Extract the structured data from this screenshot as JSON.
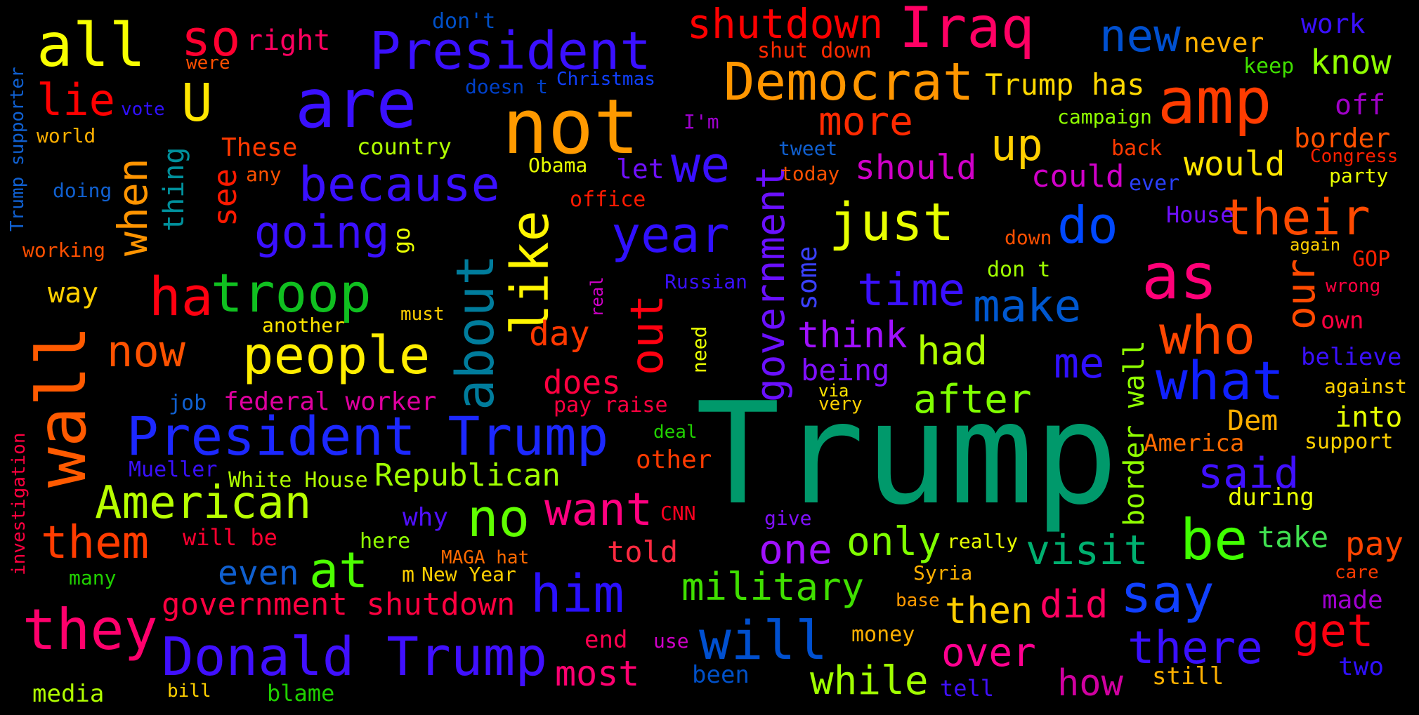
{
  "background": "#000000",
  "words": [
    {
      "text": "Trump",
      "color": "#00996b"
    },
    {
      "text": "not",
      "color": "#ff9a00"
    },
    {
      "text": "are",
      "color": "#3a10ff"
    },
    {
      "text": "all",
      "color": "#f7ff00"
    },
    {
      "text": "wall",
      "color": "#ff5a00"
    },
    {
      "text": "amp",
      "color": "#ff3c00"
    },
    {
      "text": "Iraq",
      "color": "#ff0064"
    },
    {
      "text": "President",
      "color": "#3a10ff"
    },
    {
      "text": "President Trump",
      "color": "#1c28ff"
    },
    {
      "text": "Donald Trump",
      "color": "#4010ff"
    },
    {
      "text": "Democrat",
      "color": "#ff9600"
    },
    {
      "text": "shutdown",
      "color": "#ff0000"
    },
    {
      "text": "as",
      "color": "#ff0078"
    },
    {
      "text": "who",
      "color": "#ff4600"
    },
    {
      "text": "what",
      "color": "#1020ff"
    },
    {
      "text": "they",
      "color": "#ff006c"
    },
    {
      "text": "troop",
      "color": "#10c020"
    },
    {
      "text": "ha",
      "color": "#ff0010"
    },
    {
      "text": "people",
      "color": "#ffee00"
    },
    {
      "text": "about",
      "color": "#007c9c"
    },
    {
      "text": "like",
      "color": "#fff600"
    },
    {
      "text": "year",
      "color": "#3010ff"
    },
    {
      "text": "we",
      "color": "#3a10ff"
    },
    {
      "text": "just",
      "color": "#e8ff00"
    },
    {
      "text": "do",
      "color": "#0048ff"
    },
    {
      "text": "their",
      "color": "#ff4a00"
    },
    {
      "text": "new",
      "color": "#0050d0"
    },
    {
      "text": "U",
      "color": "#ffe600"
    },
    {
      "text": "so",
      "color": "#ff0030"
    },
    {
      "text": "lie",
      "color": "#ff0000"
    },
    {
      "text": "when",
      "color": "#ff9400"
    },
    {
      "text": "because",
      "color": "#3a10ff"
    },
    {
      "text": "going",
      "color": "#3a10ff"
    },
    {
      "text": "now",
      "color": "#ff5200"
    },
    {
      "text": "American",
      "color": "#b8ff00"
    },
    {
      "text": "them",
      "color": "#ff3c00"
    },
    {
      "text": "at",
      "color": "#4cff00"
    },
    {
      "text": "no",
      "color": "#60ff00"
    },
    {
      "text": "want",
      "color": "#ff0080"
    },
    {
      "text": "him",
      "color": "#2a10ff"
    },
    {
      "text": "will",
      "color": "#0050d0"
    },
    {
      "text": "be",
      "color": "#40ff00"
    },
    {
      "text": "say",
      "color": "#1040ff"
    },
    {
      "text": "there",
      "color": "#3a10ff"
    },
    {
      "text": "get",
      "color": "#ff0010"
    },
    {
      "text": "visit",
      "color": "#00b070"
    },
    {
      "text": "one",
      "color": "#a010ff"
    },
    {
      "text": "only",
      "color": "#80ff00"
    },
    {
      "text": "military",
      "color": "#40e000"
    },
    {
      "text": "government",
      "color": "#6a10ff"
    },
    {
      "text": "government shutdown",
      "color": "#ff0040"
    },
    {
      "text": "out",
      "color": "#ff0010"
    },
    {
      "text": "make",
      "color": "#0058d0"
    },
    {
      "text": "time",
      "color": "#3a10ff"
    },
    {
      "text": "our",
      "color": "#ff4a00"
    },
    {
      "text": "more",
      "color": "#ff2a00"
    },
    {
      "text": "up",
      "color": "#ffd000"
    },
    {
      "text": "Republican",
      "color": "#a0ff00"
    },
    {
      "text": "over",
      "color": "#ff0090"
    },
    {
      "text": "while",
      "color": "#a0ff00"
    },
    {
      "text": "after",
      "color": "#80ff00"
    },
    {
      "text": "had",
      "color": "#b0ff00"
    },
    {
      "text": "me",
      "color": "#3010ff"
    },
    {
      "text": "said",
      "color": "#4010ff"
    },
    {
      "text": "think",
      "color": "#a010ff"
    },
    {
      "text": "Trump has",
      "color": "#ffd800"
    },
    {
      "text": "should",
      "color": "#d000c8"
    },
    {
      "text": "could",
      "color": "#d000c8"
    },
    {
      "text": "would",
      "color": "#ffe600"
    },
    {
      "text": "know",
      "color": "#90ff00"
    },
    {
      "text": "border wall",
      "color": "#90ff00"
    },
    {
      "text": "how",
      "color": "#d000a0"
    },
    {
      "text": "most",
      "color": "#ff0070"
    },
    {
      "text": "did",
      "color": "#ff0060"
    },
    {
      "text": "then",
      "color": "#ffd000"
    },
    {
      "text": "told",
      "color": "#ff2a40"
    },
    {
      "text": "pay",
      "color": "#ff4400"
    },
    {
      "text": "take",
      "color": "#40e050"
    },
    {
      "text": "day",
      "color": "#ff3800"
    },
    {
      "text": "does",
      "color": "#ff0040"
    },
    {
      "text": "being",
      "color": "#8010ff"
    },
    {
      "text": "right",
      "color": "#ff0060"
    },
    {
      "text": "don't",
      "color": "#0050c8"
    },
    {
      "text": "shut down",
      "color": "#ff2a00"
    },
    {
      "text": "never",
      "color": "#ffb000"
    },
    {
      "text": "work",
      "color": "#3a10ff"
    },
    {
      "text": "keep",
      "color": "#40e000"
    },
    {
      "text": "off",
      "color": "#a000c8"
    },
    {
      "text": "border",
      "color": "#ff5000"
    },
    {
      "text": "Congress",
      "color": "#ff2000"
    },
    {
      "text": "party",
      "color": "#e8ff00"
    },
    {
      "text": "campaign",
      "color": "#90ff00"
    },
    {
      "text": "back",
      "color": "#ff3a00"
    },
    {
      "text": "ever",
      "color": "#2a40ff"
    },
    {
      "text": "House",
      "color": "#7010ff"
    },
    {
      "text": "again",
      "color": "#ffd000"
    },
    {
      "text": "GOP",
      "color": "#ff2000"
    },
    {
      "text": "wrong",
      "color": "#ff0040"
    },
    {
      "text": "own",
      "color": "#ff0040"
    },
    {
      "text": "believe",
      "color": "#3a10ff"
    },
    {
      "text": "against",
      "color": "#ffd000"
    },
    {
      "text": "into",
      "color": "#e8ff00"
    },
    {
      "text": "Dem",
      "color": "#ffb000"
    },
    {
      "text": "support",
      "color": "#ffd000"
    },
    {
      "text": "America",
      "color": "#ff6a00"
    },
    {
      "text": "during",
      "color": "#e8ff00"
    },
    {
      "text": "care",
      "color": "#ff3a00"
    },
    {
      "text": "made",
      "color": "#a000d0"
    },
    {
      "text": "two",
      "color": "#3010ff"
    },
    {
      "text": "still",
      "color": "#ffb000"
    },
    {
      "text": "really",
      "color": "#e8ff00"
    },
    {
      "text": "Syria",
      "color": "#ffb000"
    },
    {
      "text": "base",
      "color": "#ff9a00"
    },
    {
      "text": "money",
      "color": "#ffb000"
    },
    {
      "text": "tell",
      "color": "#4010ff"
    },
    {
      "text": "been",
      "color": "#0050c8"
    },
    {
      "text": "use",
      "color": "#d000c8"
    },
    {
      "text": "end",
      "color": "#ff0050"
    },
    {
      "text": "give",
      "color": "#8010ff"
    },
    {
      "text": "CNN",
      "color": "#ff0020"
    },
    {
      "text": "MAGA hat",
      "color": "#ff6a00"
    },
    {
      "text": "New Year",
      "color": "#ffd000"
    },
    {
      "text": "m",
      "color": "#ffd000"
    },
    {
      "text": "here",
      "color": "#90ff00"
    },
    {
      "text": "why",
      "color": "#5010ff"
    },
    {
      "text": "will be",
      "color": "#ff0030"
    },
    {
      "text": "other",
      "color": "#ff3a00"
    },
    {
      "text": "deal",
      "color": "#20d000"
    },
    {
      "text": "very",
      "color": "#ffd000"
    },
    {
      "text": "via",
      "color": "#ffe600"
    },
    {
      "text": "pay raise",
      "color": "#ff0040"
    },
    {
      "text": "federal worker",
      "color": "#e000a0"
    },
    {
      "text": "job",
      "color": "#1060d0"
    },
    {
      "text": "White House",
      "color": "#b0ff00"
    },
    {
      "text": "Mueller",
      "color": "#3a10ff"
    },
    {
      "text": "even",
      "color": "#1060d0"
    },
    {
      "text": "many",
      "color": "#20d000"
    },
    {
      "text": "media",
      "color": "#b0ff00"
    },
    {
      "text": "bill",
      "color": "#ffd000"
    },
    {
      "text": "blame",
      "color": "#20d000"
    },
    {
      "text": "investigation",
      "color": "#ff0040"
    },
    {
      "text": "working",
      "color": "#ff5000"
    },
    {
      "text": "doing",
      "color": "#1060d0"
    },
    {
      "text": "world",
      "color": "#ffb000"
    },
    {
      "text": "vote",
      "color": "#3010ff"
    },
    {
      "text": "were",
      "color": "#ff5000"
    },
    {
      "text": "Trump supporter",
      "color": "#1060d0"
    },
    {
      "text": "way",
      "color": "#ffd000"
    },
    {
      "text": "These",
      "color": "#ff3a00"
    },
    {
      "text": "any",
      "color": "#ff5000"
    },
    {
      "text": "country",
      "color": "#b0ff00"
    },
    {
      "text": "Obama",
      "color": "#e8ff00"
    },
    {
      "text": "thing",
      "color": "#00909c"
    },
    {
      "text": "see",
      "color": "#ff1a00"
    },
    {
      "text": "go",
      "color": "#e8ff00"
    },
    {
      "text": "another",
      "color": "#ffe600"
    },
    {
      "text": "must",
      "color": "#ffd000"
    },
    {
      "text": "doesn t",
      "color": "#0040c8"
    },
    {
      "text": "Christmas",
      "color": "#1040ff"
    },
    {
      "text": "I'm",
      "color": "#a000d0"
    },
    {
      "text": "let",
      "color": "#7010ff"
    },
    {
      "text": "office",
      "color": "#ff1a00"
    },
    {
      "text": "real",
      "color": "#d000c8"
    },
    {
      "text": "Russian",
      "color": "#3a10ff"
    },
    {
      "text": "need",
      "color": "#e8ff00"
    },
    {
      "text": "some",
      "color": "#3a40ff"
    },
    {
      "text": "tweet",
      "color": "#1060d0"
    },
    {
      "text": "today",
      "color": "#ff5000"
    },
    {
      "text": "down",
      "color": "#ff5000"
    },
    {
      "text": "don t",
      "color": "#a0ff00"
    }
  ]
}
